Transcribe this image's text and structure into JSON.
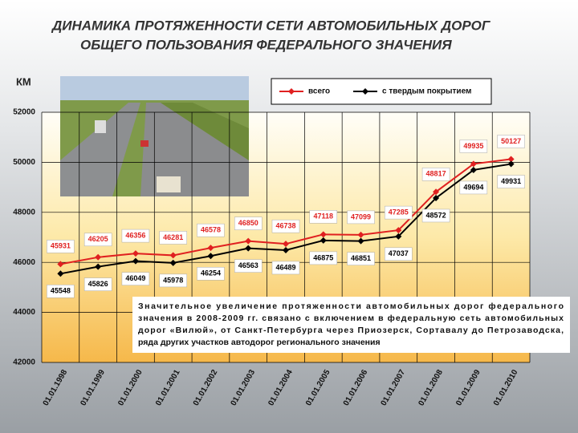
{
  "chart_data": {
    "type": "line",
    "title": [
      "ДИНАМИКА ПРОТЯЖЕННОСТИ СЕТИ АВТОМОБИЛЬНЫХ ДОРОГ",
      "ОБЩЕГО ПОЛЬЗОВАНИЯ ФЕДЕРАЛЬНОГО ЗНАЧЕНИЯ"
    ],
    "y_label": "КМ",
    "categories": [
      "01.01.1998",
      "01.01.1999",
      "01.01.2000",
      "01.01.2001",
      "01.01.2002",
      "01.01.2003",
      "01.01.2004",
      "01.01.2005",
      "01.01.2006",
      "01.01.2007",
      "01.01.2008",
      "01.01.2009",
      "01.01.2010"
    ],
    "series": [
      {
        "name": "всего",
        "color": "#e02020",
        "values": [
          45931,
          46205,
          46356,
          46281,
          46578,
          46850,
          46738,
          47118,
          47099,
          47285,
          48817,
          49935,
          50127
        ]
      },
      {
        "name": "с твердым покрытием",
        "color": "#000000",
        "values": [
          45548,
          45826,
          46049,
          45978,
          46254,
          46563,
          46489,
          46875,
          46851,
          47037,
          48572,
          49694,
          49931
        ]
      }
    ],
    "ylim": [
      42000,
      52000
    ],
    "yticks": [
      42000,
      44000,
      46000,
      48000,
      50000,
      52000
    ],
    "grid": true,
    "annotation": [
      "Значительное увеличение протяженности автомобильных дорог федерального",
      "значения в 2008-2009 гг. связано с включением в федеральную сеть автомобильных",
      "дорог «Вилюй», от Санкт-Петербурга через Приозерск, Сортавалу до Петрозаводска,",
      "ряда других участков автодорог регионального значения"
    ]
  }
}
